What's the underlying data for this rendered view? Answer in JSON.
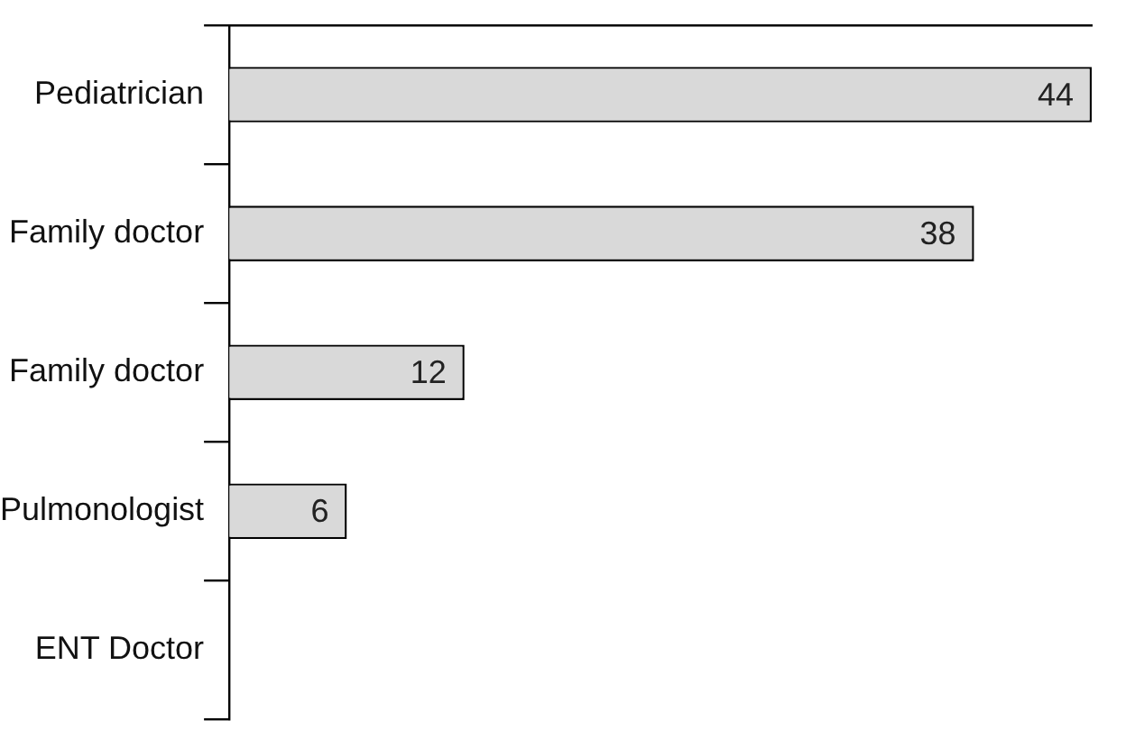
{
  "chart_data": {
    "type": "bar",
    "orientation": "horizontal",
    "categories": [
      "Pediatrician",
      "Family doctor",
      "Family doctor",
      "Pulmonologist",
      "ENT Doctor"
    ],
    "values": [
      44,
      38,
      12,
      6,
      null
    ],
    "color": "#d9d9d9",
    "xlim": [
      0,
      44
    ],
    "tick_labels": "y",
    "data_labels": true
  }
}
